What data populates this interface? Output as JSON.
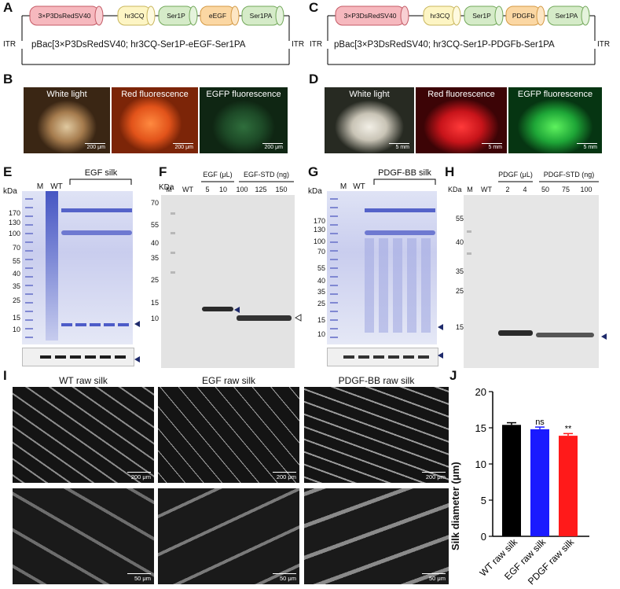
{
  "panels": {
    "A": "A",
    "B": "B",
    "C": "C",
    "D": "D",
    "E": "E",
    "F": "F",
    "G": "G",
    "H": "H",
    "I": "I",
    "J": "J"
  },
  "panel_a": {
    "elements": [
      "3×P3DsRedSV40",
      "hr3CQ",
      "Ser1P",
      "eEGF",
      "Ser1PA"
    ],
    "itr_left": "ITR",
    "itr_right": "ITR",
    "construct": "pBac[3×P3DsRedSV40; hr3CQ-Ser1P-eEGF-Ser1PA"
  },
  "panel_c": {
    "elements": [
      "3×P3DsRedSV40",
      "hr3CQ",
      "Ser1P",
      "PDGFb",
      "Ser1PA"
    ],
    "itr_left": "ITR",
    "itr_right": "ITR",
    "construct": "pBac[3×P3DsRedSV40; hr3CQ-Ser1P-PDGFb-Ser1PA"
  },
  "panel_b": {
    "images": [
      "White light",
      "Red fluorescence",
      "EGFP fluorescence"
    ],
    "scale": "200 μm"
  },
  "panel_d": {
    "images": [
      "White light",
      "Red fluorescence",
      "EGFP fluorescence"
    ],
    "scale": "5 mm"
  },
  "panel_e": {
    "kda": "kDa",
    "lane_m": "M",
    "lane_wt": "WT",
    "group": "EGF silk",
    "ticks": [
      "170",
      "130",
      "100",
      "70",
      "55",
      "40",
      "35",
      "25",
      "15",
      "10"
    ]
  },
  "panel_f": {
    "kda": "KDa",
    "lane_m": "M",
    "lane_wt": "WT",
    "group1": "EGF (μL)",
    "group2": "EGF-STD (ng)",
    "lanes1": [
      "5",
      "10"
    ],
    "lanes2": [
      "100",
      "125",
      "150"
    ],
    "ticks": [
      "70",
      "55",
      "40",
      "35",
      "25",
      "15",
      "10"
    ]
  },
  "panel_g": {
    "kda": "kDa",
    "lane_m": "M",
    "lane_wt": "WT",
    "group": "PDGF-BB silk",
    "ticks": [
      "170",
      "130",
      "100",
      "70",
      "55",
      "40",
      "35",
      "25",
      "15",
      "10"
    ]
  },
  "panel_h": {
    "kda": "KDa",
    "lane_m": "M",
    "lane_wt": "WT",
    "group1": "PDGF (μL)",
    "group2": "PDGF-STD (ng)",
    "lanes1": [
      "2",
      "4"
    ],
    "lanes2": [
      "50",
      "75",
      "100"
    ],
    "ticks": [
      "55",
      "40",
      "35",
      "25",
      "15"
    ]
  },
  "panel_i": {
    "columns": [
      "WT raw silk",
      "EGF raw silk",
      "PDGF-BB raw silk"
    ],
    "scale_top": "200 μm",
    "scale_bottom": "50 μm"
  },
  "colors": {
    "red_box": "#f6b8be",
    "yellow_box": "#fdf5c4",
    "green_box": "#d5ebc8",
    "orange_box": "#fbd7a3",
    "bar_wt": "#000000",
    "bar_egf": "#1a1aff",
    "bar_pdgf": "#ff1a1a",
    "gel_blue": "#5563c9"
  },
  "chart_data": {
    "type": "bar",
    "categories": [
      "WT raw silk",
      "EGF raw silk",
      "PDGF raw silk"
    ],
    "values": [
      15.4,
      14.8,
      13.9
    ],
    "errors": [
      0.3,
      0.3,
      0.3
    ],
    "annotations": [
      "",
      "ns",
      "**"
    ],
    "ylabel": "Silk diameter (μm)",
    "ylim": [
      0,
      20
    ],
    "yticks": [
      "0",
      "5",
      "10",
      "15",
      "20"
    ],
    "grid": false
  }
}
